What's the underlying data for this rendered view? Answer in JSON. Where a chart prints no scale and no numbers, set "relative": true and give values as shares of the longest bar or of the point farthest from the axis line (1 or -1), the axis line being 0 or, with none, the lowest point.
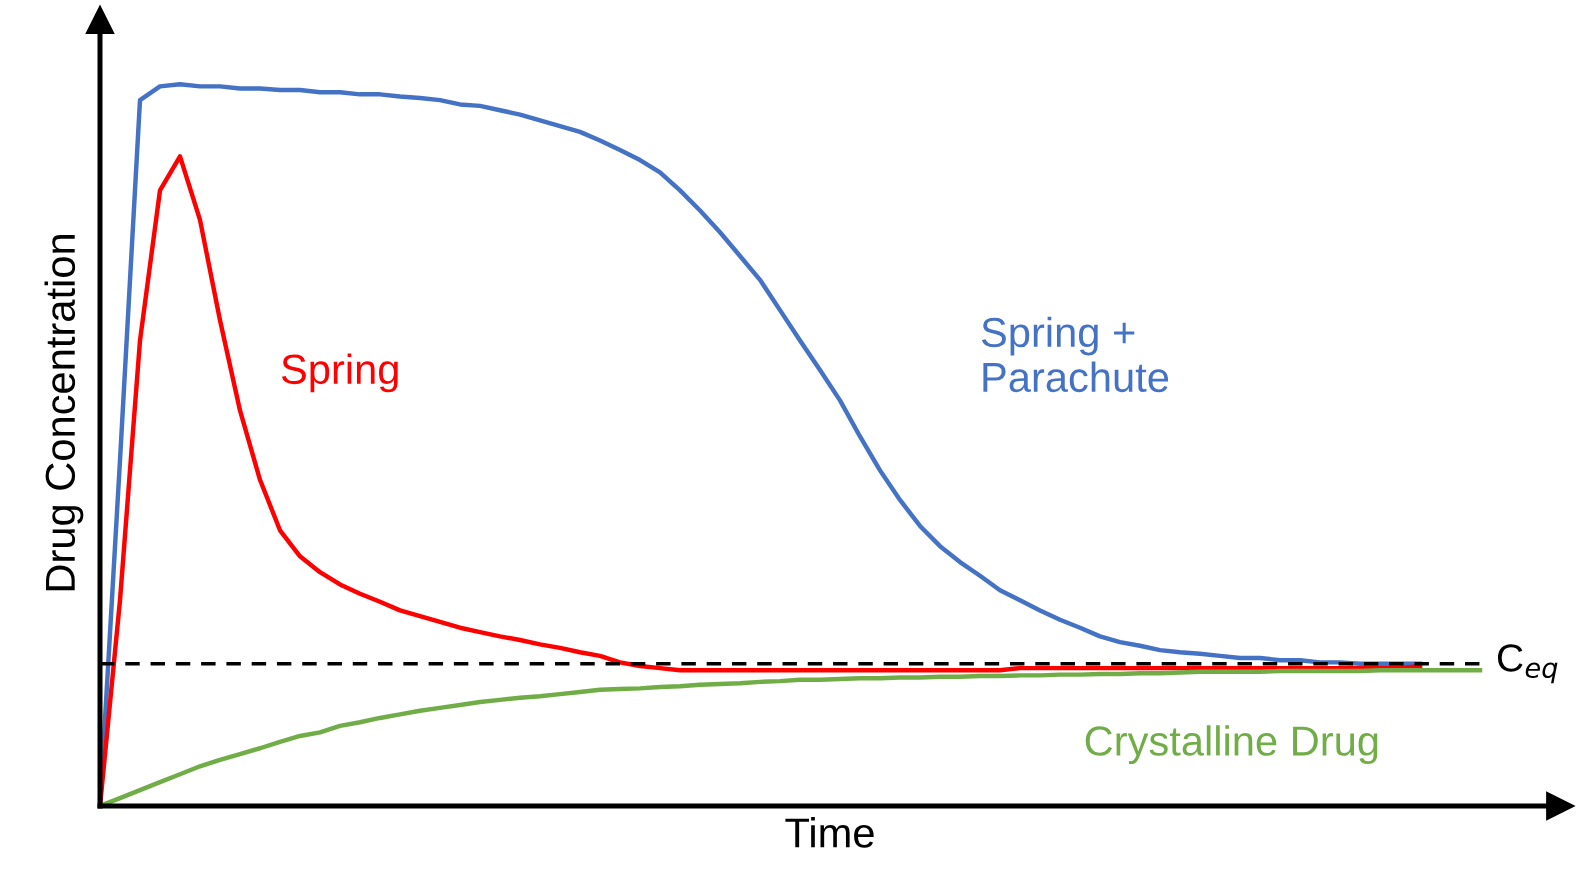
{
  "chart_data": {
    "type": "line",
    "relative": true,
    "xlabel": "Time",
    "ylabel": "Drug Concentration",
    "categories": [
      null,
      null,
      null,
      null,
      null,
      null,
      null,
      null,
      null,
      null,
      null,
      null,
      null,
      null,
      null,
      null,
      null,
      null,
      null,
      null,
      null,
      null,
      null,
      null,
      null,
      null,
      null,
      null,
      null,
      null,
      null,
      null,
      null,
      null,
      null,
      null,
      null,
      null,
      null,
      null,
      null,
      null,
      null,
      null,
      null,
      null,
      null,
      null,
      null,
      null,
      null,
      null,
      null,
      null,
      null,
      null,
      null,
      null,
      null,
      null,
      null,
      null,
      null,
      null,
      null,
      null,
      null,
      null,
      null,
      null
    ],
    "series": [
      {
        "name": "Spring +\nParachute",
        "color": "#4472c4",
        "values": [
          0,
          0.479,
          0.978,
          0.997,
          1,
          0.997,
          0.997,
          0.994,
          0.994,
          0.992,
          0.992,
          0.989,
          0.989,
          0.986,
          0.986,
          0.983,
          0.981,
          0.978,
          0.972,
          0.97,
          0.964,
          0.958,
          0.95,
          0.942,
          0.934,
          0.922,
          0.909,
          0.895,
          0.878,
          0.853,
          0.825,
          0.795,
          0.762,
          0.729,
          0.687,
          0.645,
          0.604,
          0.562,
          0.512,
          0.465,
          0.424,
          0.388,
          0.36,
          0.338,
          0.319,
          0.299,
          0.285,
          0.271,
          0.258,
          0.247,
          0.235,
          0.227,
          0.222,
          0.216,
          0.213,
          0.211,
          0.208,
          0.205,
          0.205,
          0.202,
          0.202,
          0.199,
          0.199,
          0.197,
          0.197,
          0.197,
          0.197,
          null,
          null,
          null
        ]
      },
      {
        "name": "Spring",
        "color": "#ff0000",
        "values": [
          0,
          0.285,
          0.645,
          0.853,
          0.9,
          0.812,
          0.673,
          0.548,
          0.452,
          0.382,
          0.346,
          0.324,
          0.307,
          0.294,
          0.283,
          0.271,
          0.263,
          0.255,
          0.247,
          0.241,
          0.235,
          0.23,
          0.224,
          0.219,
          0.213,
          0.208,
          0.199,
          0.194,
          0.191,
          0.188,
          0.188,
          0.188,
          0.188,
          0.188,
          0.188,
          0.188,
          0.188,
          0.188,
          0.188,
          0.188,
          0.188,
          0.188,
          0.188,
          0.188,
          0.188,
          0.188,
          0.191,
          0.191,
          0.191,
          0.191,
          0.191,
          0.191,
          0.191,
          0.191,
          0.191,
          0.191,
          0.191,
          0.191,
          0.191,
          0.191,
          0.191,
          0.191,
          0.191,
          0.191,
          0.191,
          0.191,
          0.194,
          null,
          null,
          null
        ]
      },
      {
        "name": "Crystalline Drug",
        "color": "#70ad47",
        "values": [
          0,
          0.011,
          0.022,
          0.033,
          0.044,
          0.055,
          0.064,
          0.072,
          0.08,
          0.089,
          0.097,
          0.102,
          0.111,
          0.116,
          0.122,
          0.127,
          0.132,
          0.136,
          0.14,
          0.144,
          0.147,
          0.15,
          0.152,
          0.155,
          0.158,
          0.161,
          0.162,
          0.163,
          0.165,
          0.166,
          0.168,
          0.169,
          0.17,
          0.172,
          0.173,
          0.175,
          0.175,
          0.176,
          0.177,
          0.177,
          0.178,
          0.178,
          0.179,
          0.179,
          0.18,
          0.18,
          0.181,
          0.181,
          0.182,
          0.182,
          0.183,
          0.183,
          0.184,
          0.184,
          0.185,
          0.186,
          0.186,
          0.186,
          0.186,
          0.187,
          0.187,
          0.187,
          0.187,
          0.187,
          0.188,
          0.188,
          0.188,
          0.188,
          0.188,
          0.188
        ]
      }
    ],
    "ref_lines": [
      {
        "axis": "y",
        "value": 0.197,
        "label": "C$_{eq}$",
        "color": "#000000",
        "line_style": "dashed"
      }
    ],
    "legend": false
  }
}
